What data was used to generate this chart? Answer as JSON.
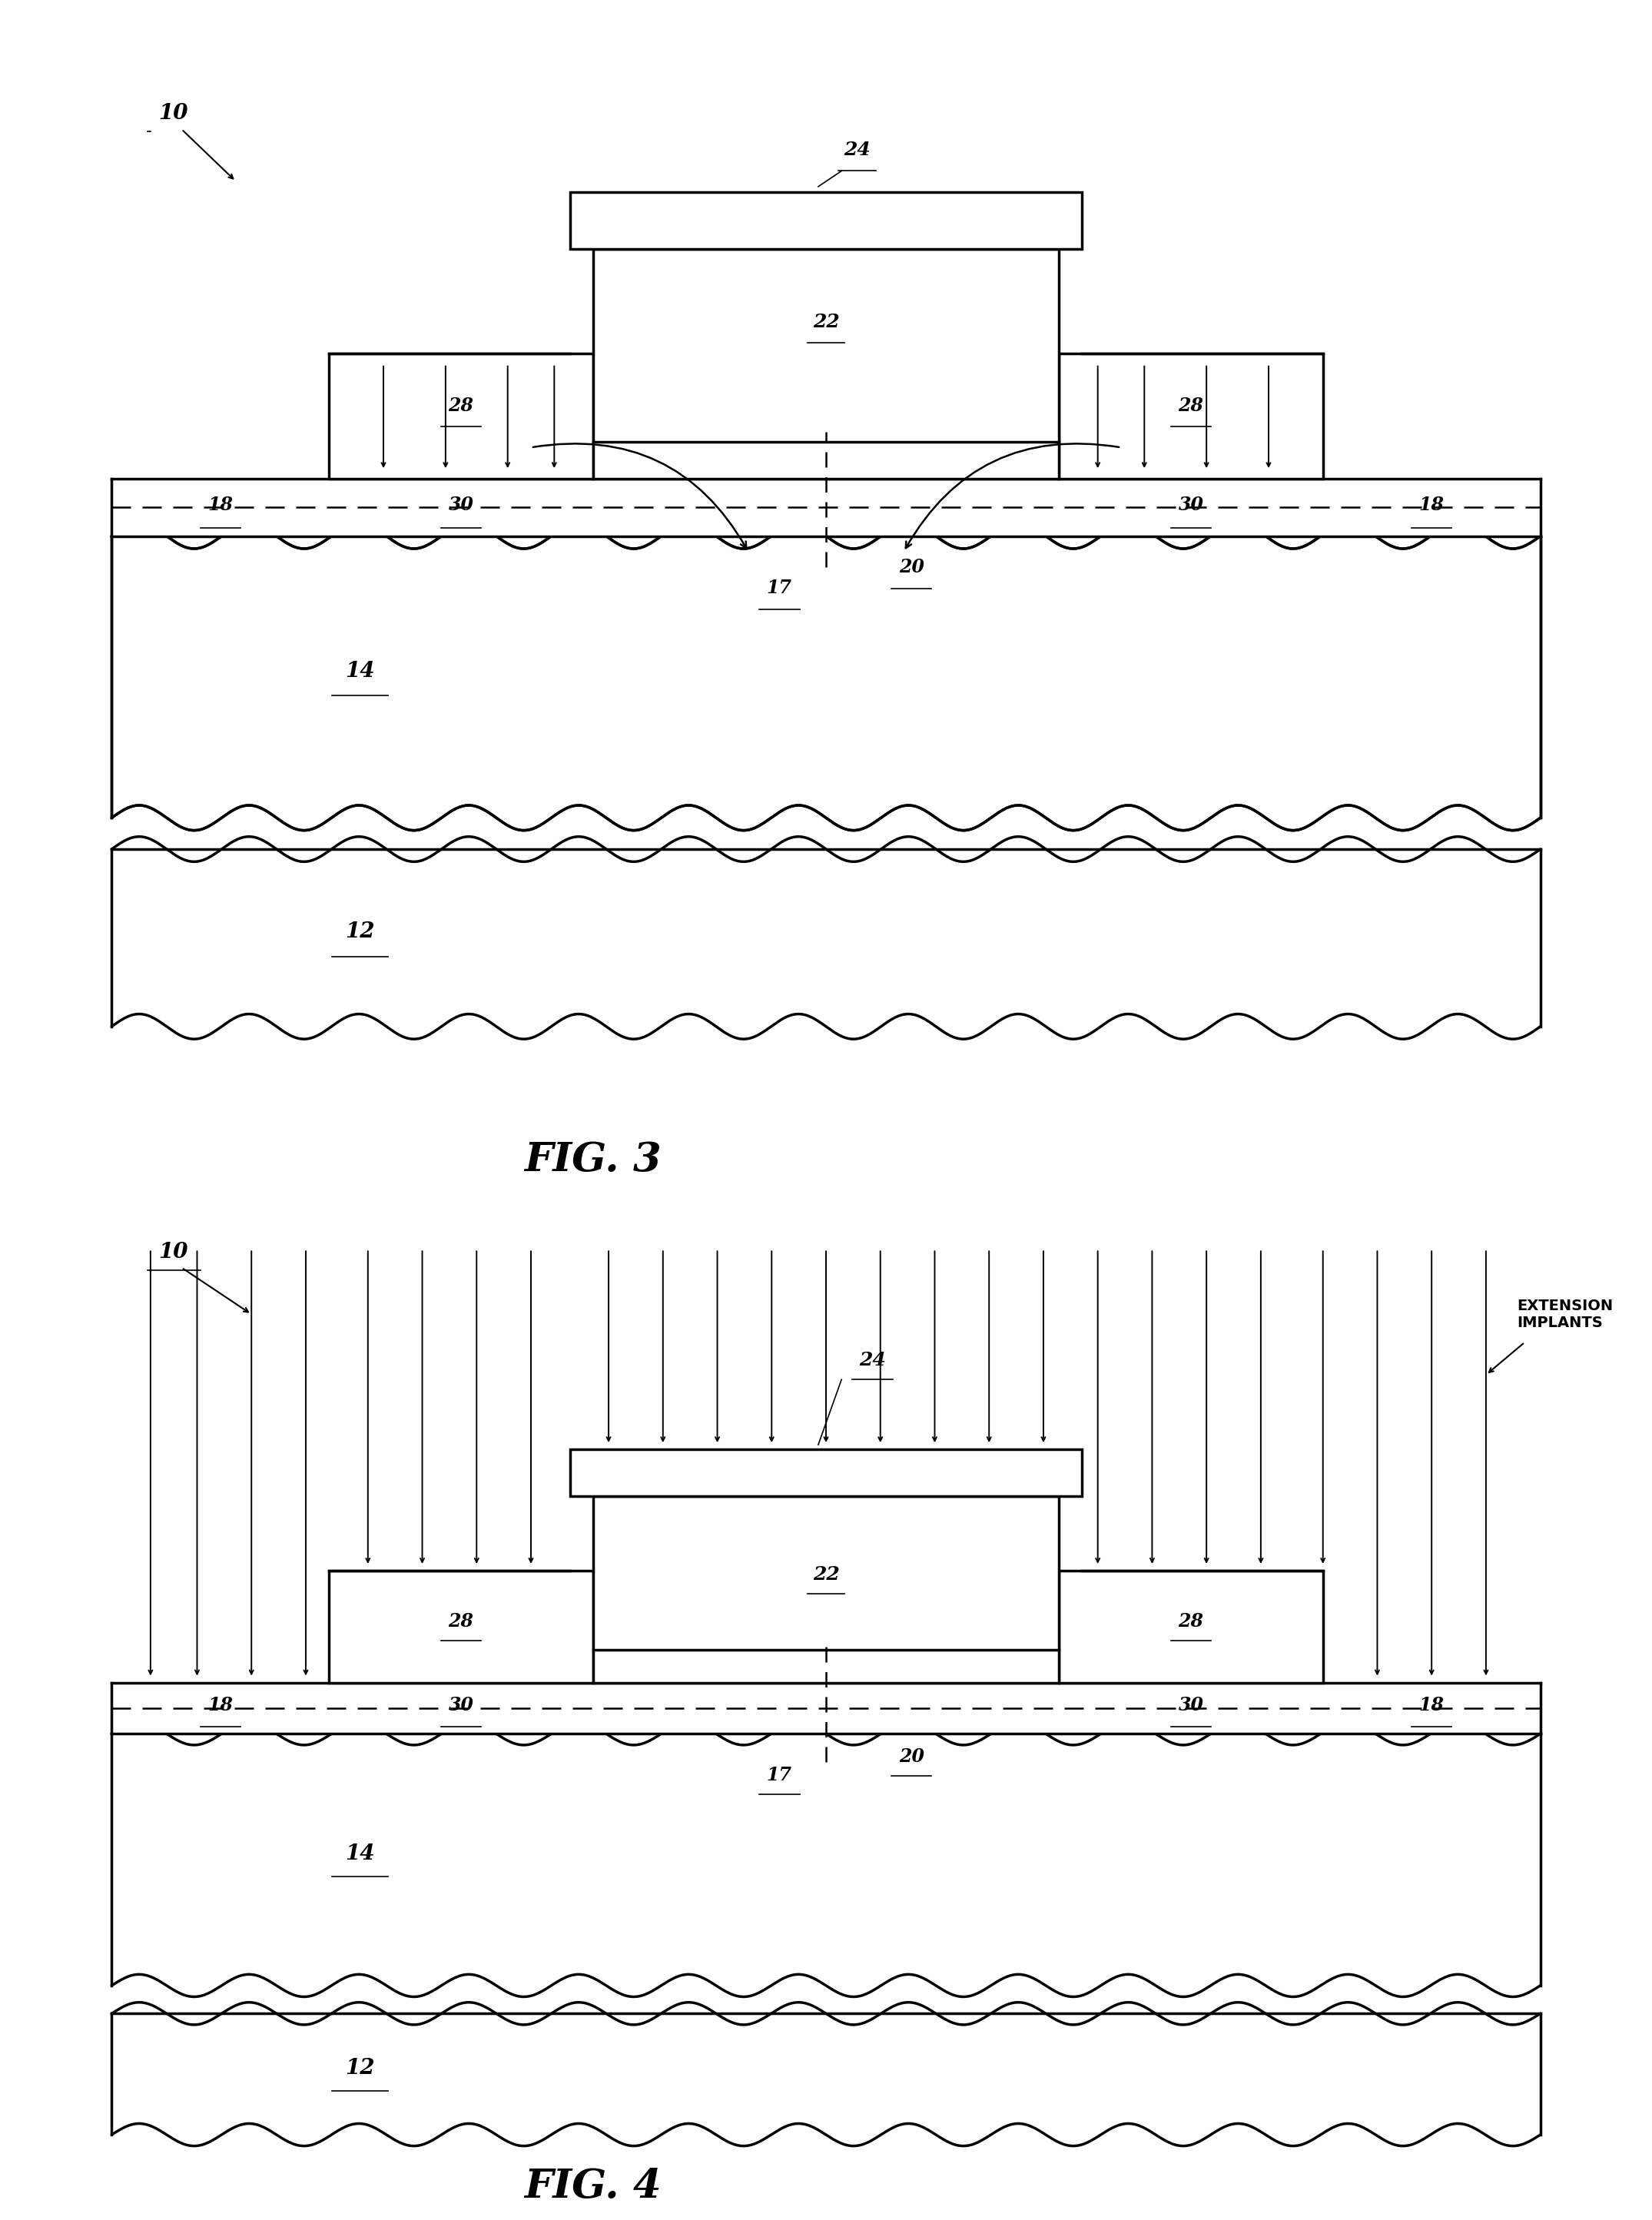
{
  "bg_color": "#ffffff",
  "fig3_label": "FIG. 3",
  "fig4_label": "FIG. 4",
  "lw_thick": 2.5,
  "lw_medium": 1.8,
  "lw_thin": 1.4,
  "fig3": {
    "ref10": "10",
    "ref12": "12",
    "ref14": "14",
    "ref17": "17",
    "ref18l": "18",
    "ref18r": "18",
    "ref20": "20",
    "ref22": "22",
    "ref24": "24",
    "ref28l": "28",
    "ref28r": "28",
    "ref30l": "30",
    "ref30r": "30"
  },
  "fig4": {
    "ref10": "10",
    "ref12": "12",
    "ref14": "14",
    "ref17": "17",
    "ref18l": "18",
    "ref18r": "18",
    "ref20": "20",
    "ref22": "22",
    "ref24": "24",
    "ref28l": "28",
    "ref28r": "28",
    "ref30l": "30",
    "ref30r": "30",
    "ext_label": "EXTENSION\nIMPLANTS"
  }
}
